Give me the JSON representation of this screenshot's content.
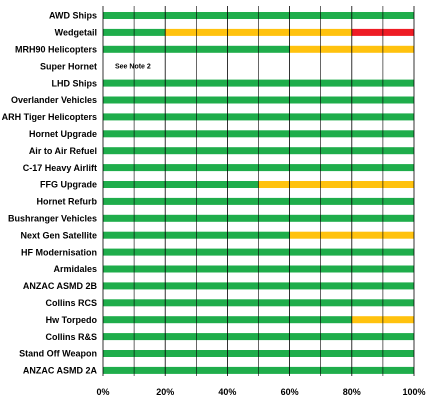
{
  "chart_data": {
    "type": "bar",
    "orientation": "horizontal",
    "stacked": true,
    "colors": {
      "green": "#1fad4b",
      "amber": "#ffc20e",
      "red": "#ee1c24",
      "grid": "#000000"
    },
    "xlim": [
      0,
      100
    ],
    "x_ticks": [
      "0%",
      "20%",
      "40%",
      "60%",
      "80%",
      "100%"
    ],
    "grid": true,
    "categories": [
      {
        "label": "AWD Ships",
        "segments": [
          {
            "color": "green",
            "value": 100
          }
        ]
      },
      {
        "label": "Wedgetail",
        "segments": [
          {
            "color": "green",
            "value": 20
          },
          {
            "color": "amber",
            "value": 60
          },
          {
            "color": "red",
            "value": 20
          }
        ]
      },
      {
        "label": "MRH90 Helicopters",
        "segments": [
          {
            "color": "green",
            "value": 60
          },
          {
            "color": "amber",
            "value": 40
          }
        ]
      },
      {
        "label": "Super Hornet",
        "segments": [],
        "note": "See Note 2"
      },
      {
        "label": "LHD Ships",
        "segments": [
          {
            "color": "green",
            "value": 100
          }
        ]
      },
      {
        "label": "Overlander Vehicles",
        "segments": [
          {
            "color": "green",
            "value": 100
          }
        ]
      },
      {
        "label": "ARH Tiger Helicopters",
        "segments": [
          {
            "color": "green",
            "value": 100
          }
        ]
      },
      {
        "label": "Hornet Upgrade",
        "segments": [
          {
            "color": "green",
            "value": 100
          }
        ]
      },
      {
        "label": "Air to Air Refuel",
        "segments": [
          {
            "color": "green",
            "value": 100
          }
        ]
      },
      {
        "label": "C-17 Heavy Airlift",
        "segments": [
          {
            "color": "green",
            "value": 100
          }
        ]
      },
      {
        "label": "FFG Upgrade",
        "segments": [
          {
            "color": "green",
            "value": 50
          },
          {
            "color": "amber",
            "value": 50
          }
        ]
      },
      {
        "label": "Hornet Refurb",
        "segments": [
          {
            "color": "green",
            "value": 100
          }
        ]
      },
      {
        "label": "Bushranger Vehicles",
        "segments": [
          {
            "color": "green",
            "value": 100
          }
        ]
      },
      {
        "label": "Next Gen Satellite",
        "segments": [
          {
            "color": "green",
            "value": 60
          },
          {
            "color": "amber",
            "value": 40
          }
        ]
      },
      {
        "label": "HF Modernisation",
        "segments": [
          {
            "color": "green",
            "value": 100
          }
        ]
      },
      {
        "label": "Armidales",
        "segments": [
          {
            "color": "green",
            "value": 100
          }
        ]
      },
      {
        "label": "ANZAC ASMD 2B",
        "segments": [
          {
            "color": "green",
            "value": 100
          }
        ]
      },
      {
        "label": "Collins RCS",
        "segments": [
          {
            "color": "green",
            "value": 100
          }
        ]
      },
      {
        "label": "Hw Torpedo",
        "segments": [
          {
            "color": "green",
            "value": 80
          },
          {
            "color": "amber",
            "value": 20
          }
        ]
      },
      {
        "label": "Collins R&S",
        "segments": [
          {
            "color": "green",
            "value": 100
          }
        ]
      },
      {
        "label": "Stand Off  Weapon",
        "segments": [
          {
            "color": "green",
            "value": 100
          }
        ]
      },
      {
        "label": "ANZAC ASMD 2A",
        "segments": [
          {
            "color": "green",
            "value": 100
          }
        ]
      }
    ]
  }
}
